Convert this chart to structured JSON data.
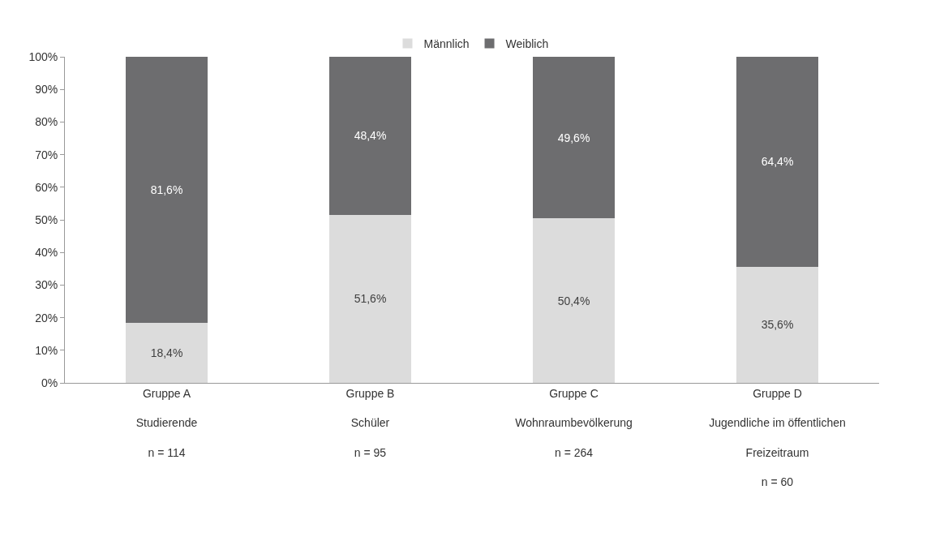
{
  "chart_data": {
    "type": "bar",
    "stacked": true,
    "categories": [
      "Gruppe A\nStudierende\nn = 114",
      "Gruppe B\nSchüler\nn = 95",
      "Gruppe C\nWohnraumbevölkerung\nn = 264",
      "Gruppe D\nJugendliche im öffentlichen\nFreizeitraum\nn = 60"
    ],
    "series": [
      {
        "name": "Männlich",
        "color": "#dcdcdc",
        "values": [
          18.4,
          51.6,
          50.4,
          35.6
        ],
        "value_labels": [
          "18,4%",
          "51,6%",
          "50,4%",
          "35,6%"
        ]
      },
      {
        "name": "Weiblich",
        "color": "#6d6d6f",
        "values": [
          81.6,
          48.4,
          49.6,
          64.4
        ],
        "value_labels": [
          "81,6%",
          "48,4%",
          "49,6%",
          "64,4%"
        ]
      }
    ],
    "ylim": [
      0,
      100
    ],
    "yticks": [
      {
        "value": 0,
        "label": "0%"
      },
      {
        "value": 10,
        "label": "10%"
      },
      {
        "value": 20,
        "label": "20%"
      },
      {
        "value": 30,
        "label": "30%"
      },
      {
        "value": 40,
        "label": "40%"
      },
      {
        "value": 50,
        "label": "50%"
      },
      {
        "value": 60,
        "label": "60%"
      },
      {
        "value": 70,
        "label": "70%"
      },
      {
        "value": 80,
        "label": "80%"
      },
      {
        "value": 90,
        "label": "90%"
      },
      {
        "value": 100,
        "label": "100%"
      }
    ],
    "legend": "top"
  }
}
